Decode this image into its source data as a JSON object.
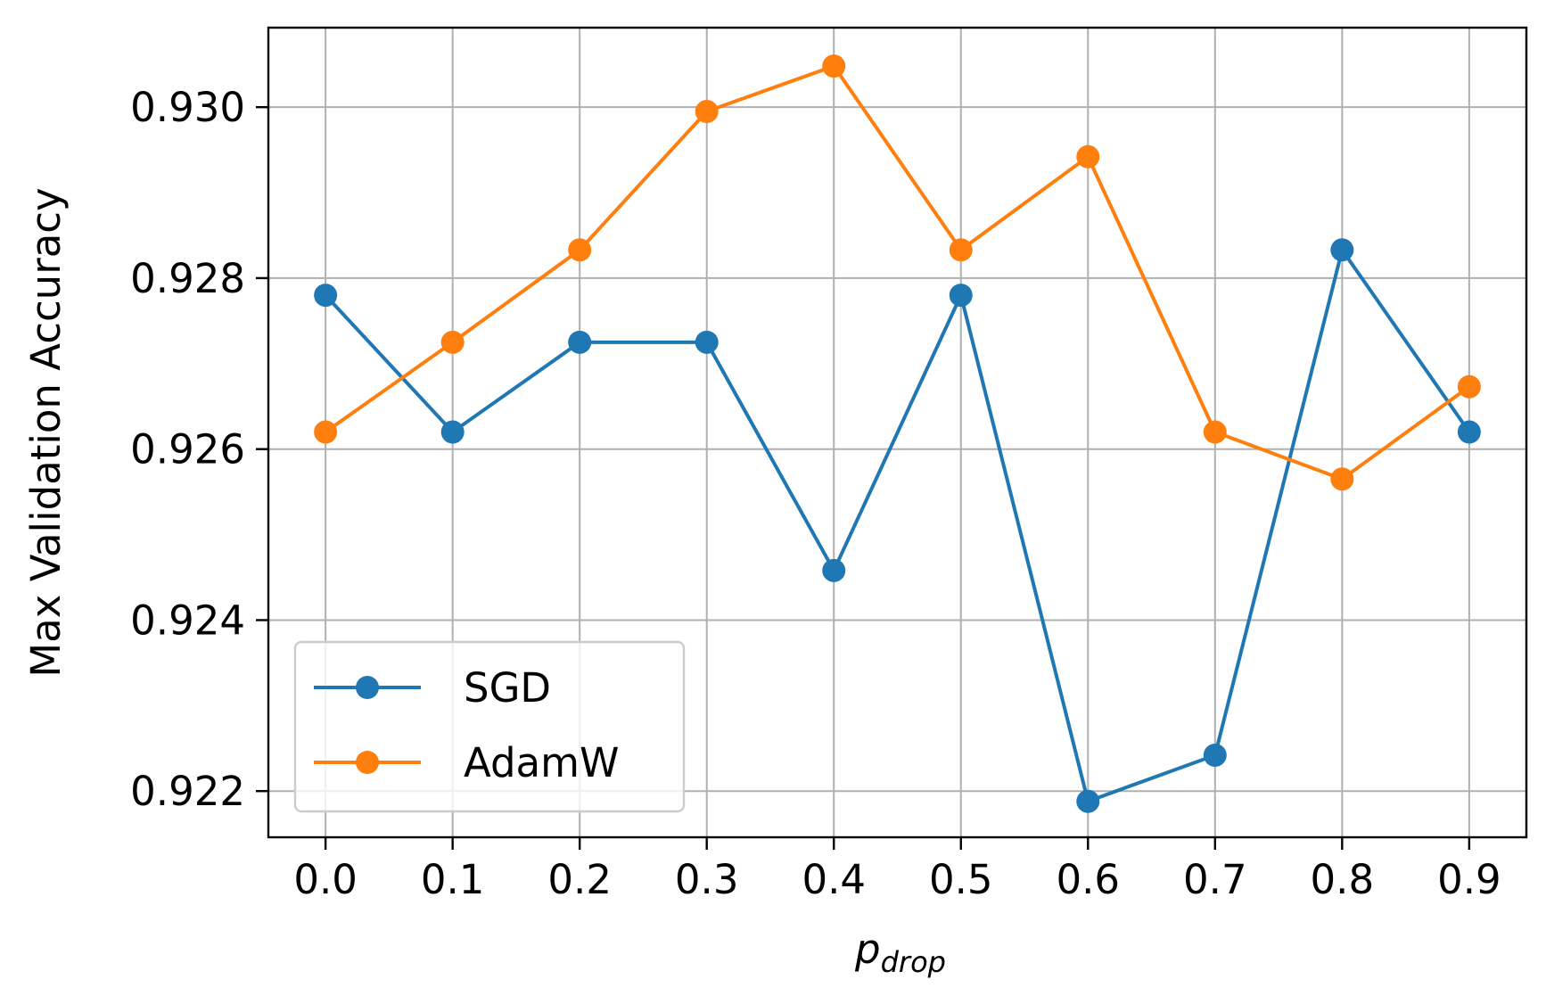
{
  "chart_data": {
    "type": "line",
    "x": [
      0.0,
      0.1,
      0.2,
      0.3,
      0.4,
      0.5,
      0.6,
      0.7,
      0.8,
      0.9
    ],
    "x_tick_labels": [
      "0.0",
      "0.1",
      "0.2",
      "0.3",
      "0.4",
      "0.5",
      "0.6",
      "0.7",
      "0.8",
      "0.9"
    ],
    "y_ticks": [
      0.922,
      0.924,
      0.926,
      0.928,
      0.93
    ],
    "y_tick_labels": [
      "0.922",
      "0.924",
      "0.926",
      "0.928",
      "0.930"
    ],
    "xlim": [
      -0.045,
      0.945
    ],
    "ylim": [
      0.92146,
      0.93093
    ],
    "xlabel_main": "p",
    "xlabel_sub": "drop",
    "ylabel": "Max Validation Accuracy",
    "grid": true,
    "legend_position": "lower-left",
    "series": [
      {
        "name": "SGD",
        "color": "#1f77b4",
        "values": [
          0.9278,
          0.9262,
          0.92725,
          0.92725,
          0.92458,
          0.9278,
          0.92188,
          0.92242,
          0.92833,
          0.9262
        ]
      },
      {
        "name": "AdamW",
        "color": "#ff7f0e",
        "values": [
          0.9262,
          0.92725,
          0.92833,
          0.92995,
          0.93048,
          0.92833,
          0.92942,
          0.9262,
          0.92565,
          0.92673
        ]
      }
    ]
  }
}
